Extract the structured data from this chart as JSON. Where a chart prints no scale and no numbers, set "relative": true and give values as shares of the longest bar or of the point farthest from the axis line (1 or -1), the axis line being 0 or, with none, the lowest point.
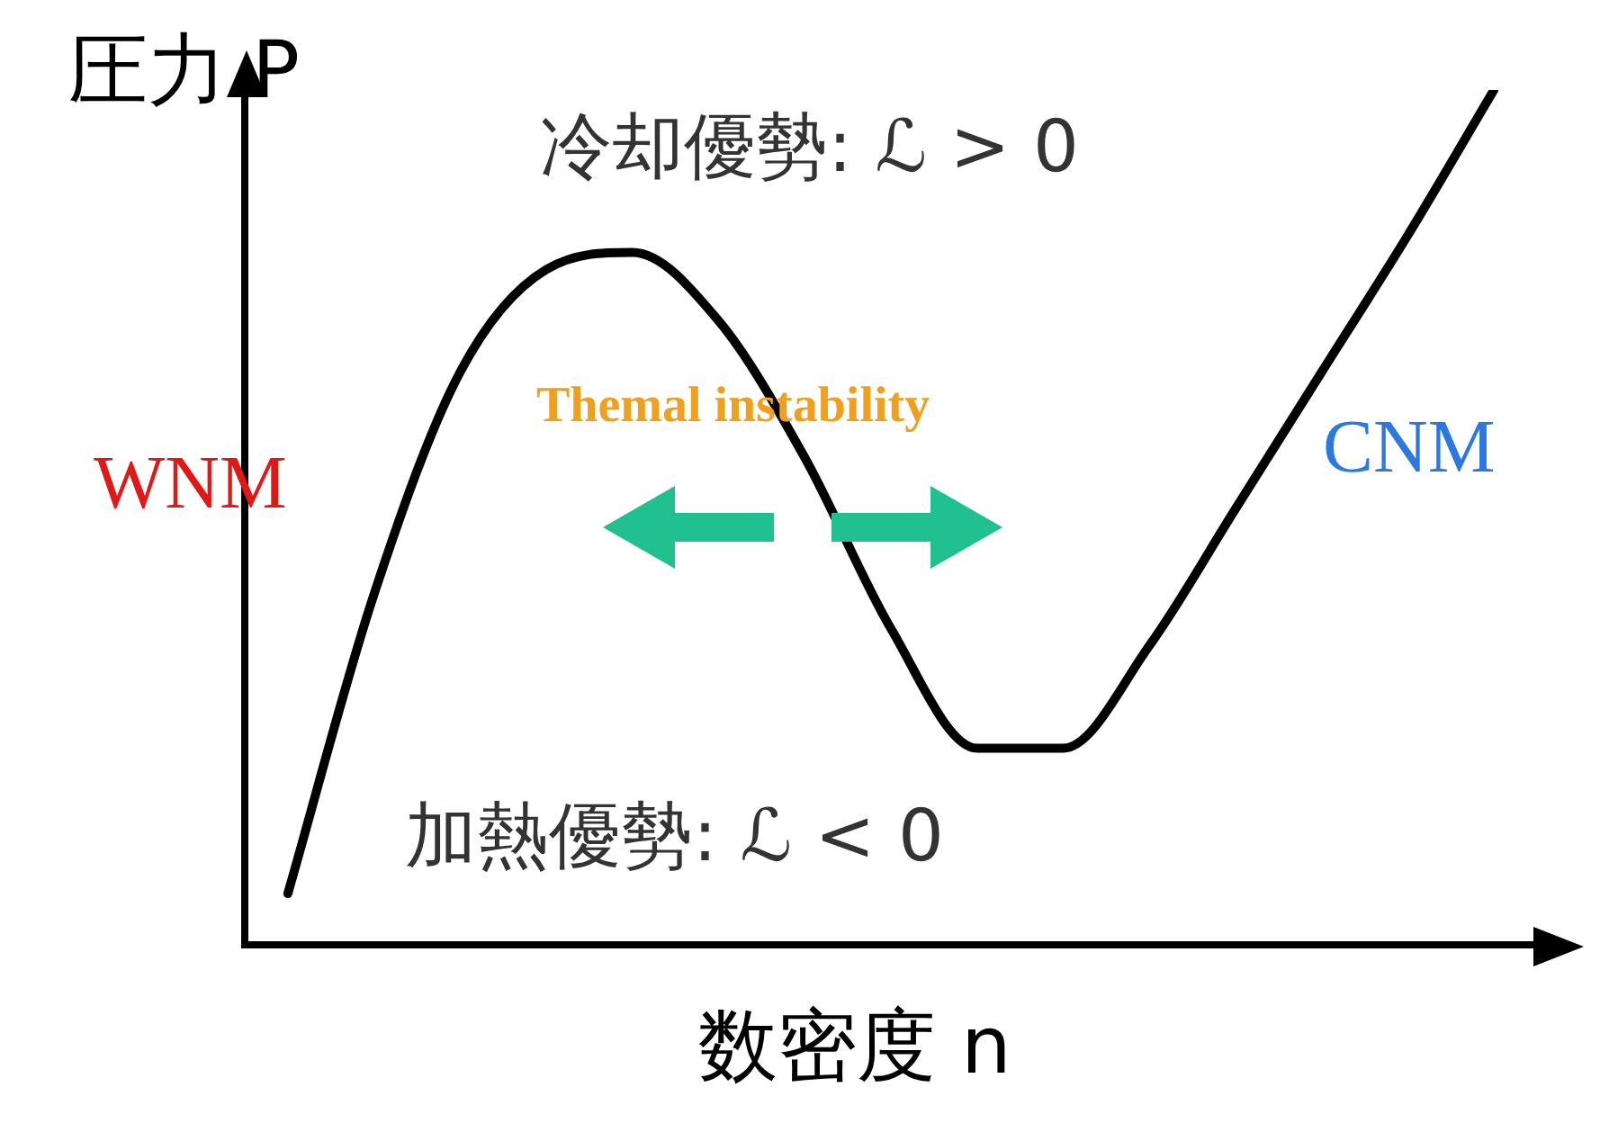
{
  "chart_data": {
    "type": "line",
    "relative": true,
    "xlabel": "数密度 n",
    "ylabel": "圧力 P",
    "categories": [
      null,
      null,
      null,
      null,
      null,
      null,
      null,
      null,
      null,
      null,
      null,
      null,
      null,
      null,
      null
    ],
    "series": [
      {
        "color": "#000000",
        "values": [
          0.06,
          0.41,
          0.67,
          0.79,
          0.81,
          0.73,
          0.57,
          0.37,
          0.23,
          0.23,
          0.35,
          0.51,
          0.67,
          0.83,
          1
        ]
      }
    ],
    "annotations": [
      "冷却優勢: ℒ > 0",
      "Themal instability",
      "WNM",
      "CNM",
      "加熱優勢: ℒ < 0"
    ],
    "grid": false,
    "legend": false,
    "marker": "none",
    "line_style": "solid"
  }
}
